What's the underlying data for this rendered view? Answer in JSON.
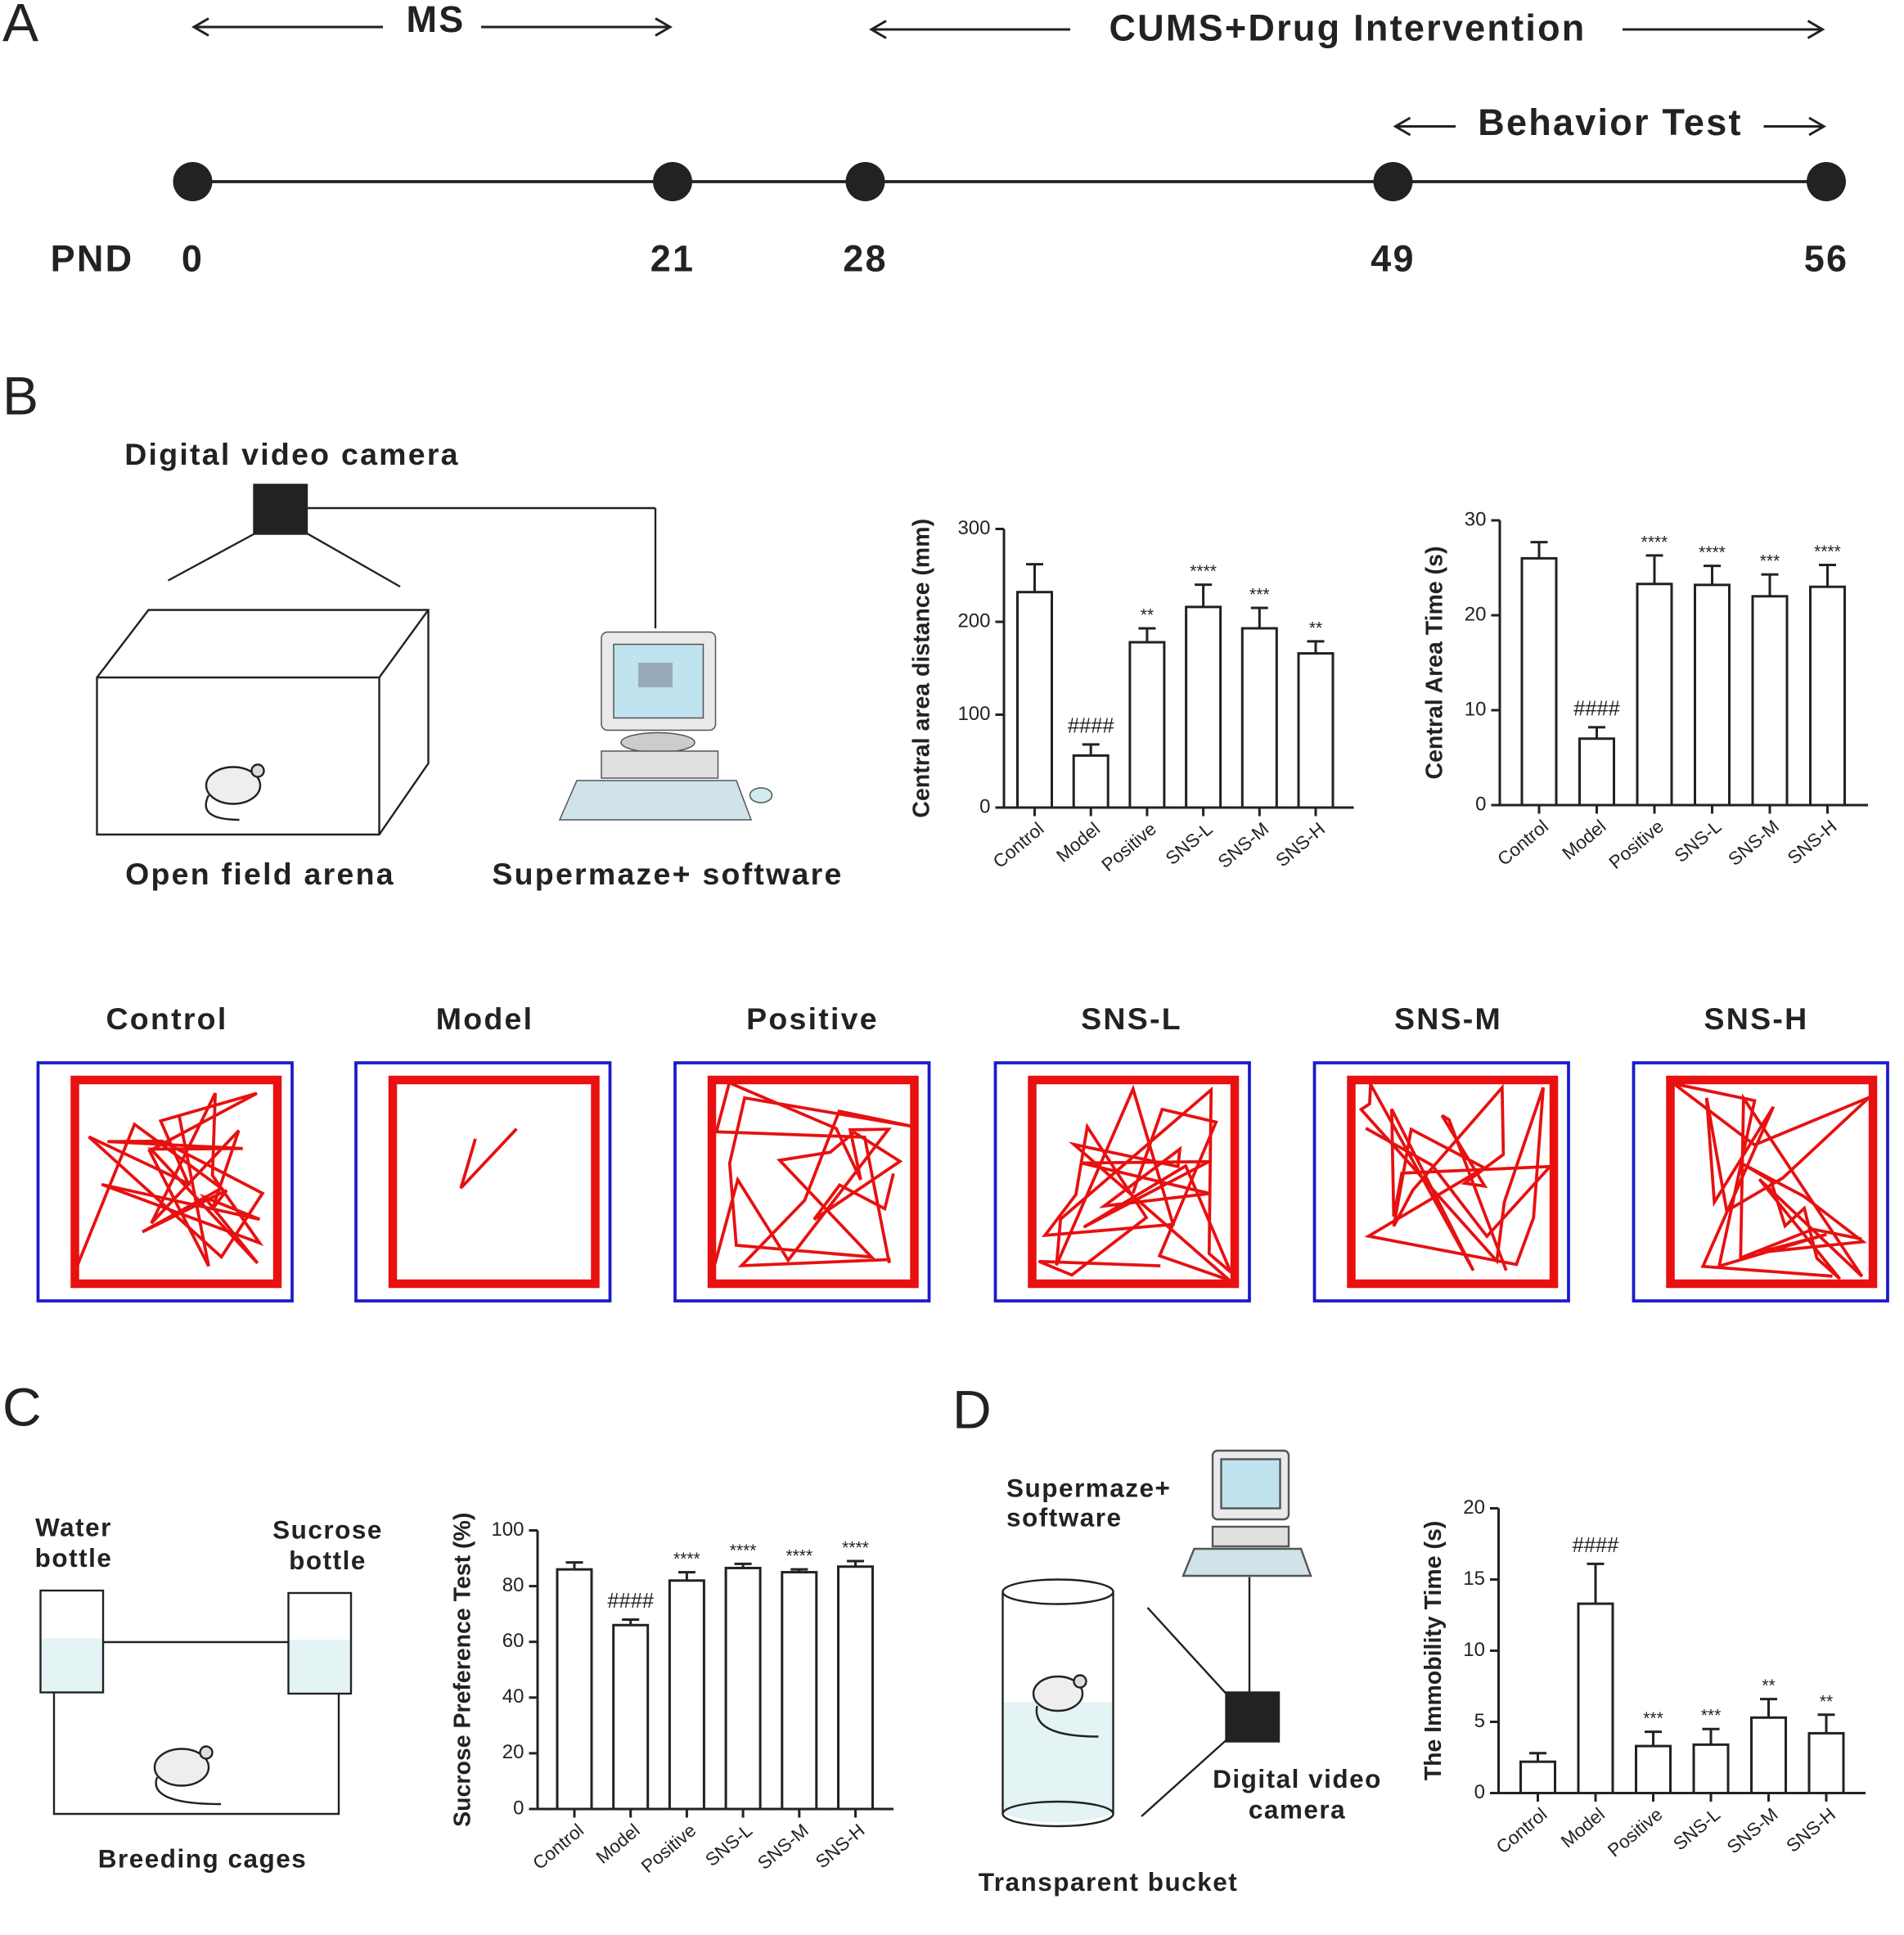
{
  "panel_a": {
    "letter": "A",
    "ms": "MS",
    "cums": "CUMS+Drug Intervention",
    "behavior": "Behavior Test",
    "pnd": "PND",
    "points": [
      "0",
      "21",
      "28",
      "49",
      "56"
    ]
  },
  "panel_b": {
    "letter": "B",
    "camera": "Digital video camera",
    "arena": "Open field arena",
    "software": "Supermaze+ software",
    "tracks": [
      "Control",
      "Model",
      "Positive",
      "SNS-L",
      "SNS-M",
      "SNS-H"
    ]
  },
  "panel_c": {
    "letter": "C",
    "water_bottle": [
      "Water",
      "bottle"
    ],
    "sucrose_bottle": [
      "Sucrose",
      "bottle"
    ],
    "cages": "Breeding cages"
  },
  "panel_d": {
    "letter": "D",
    "software": [
      "Supermaze+",
      "software"
    ],
    "camera": [
      "Digital video",
      "camera"
    ],
    "bucket": "Transparent bucket"
  },
  "chart_data": [
    {
      "type": "bar",
      "ylabel": "Central area distance (mm)",
      "categories": [
        "Control",
        "Model",
        "Positive",
        "SNS-L",
        "SNS-M",
        "SNS-H"
      ],
      "values": [
        232,
        56,
        178,
        216,
        193,
        166
      ],
      "errors": [
        30,
        12,
        15,
        24,
        22,
        13
      ],
      "annotations": [
        null,
        "####",
        "**",
        "****",
        "***",
        "**"
      ],
      "ylim": [
        0,
        300
      ],
      "yticks": [
        0,
        100,
        200,
        300
      ]
    },
    {
      "type": "bar",
      "ylabel": "Central Area Time (s)",
      "categories": [
        "Control",
        "Model",
        "Positive",
        "SNS-L",
        "SNS-M",
        "SNS-H"
      ],
      "values": [
        26,
        7,
        23.3,
        23.2,
        22,
        23
      ],
      "errors": [
        1.7,
        1.2,
        3,
        2,
        2.3,
        2.3
      ],
      "annotations": [
        null,
        "####",
        "****",
        "****",
        "***",
        "****"
      ],
      "ylim": [
        0,
        30
      ],
      "yticks": [
        0,
        10,
        20,
        30
      ]
    },
    {
      "type": "bar",
      "ylabel": "Sucrose Preference Test (%)",
      "categories": [
        "Control",
        "Model",
        "Positive",
        "SNS-L",
        "SNS-M",
        "SNS-H"
      ],
      "values": [
        86,
        66,
        82,
        86.5,
        85,
        87
      ],
      "errors": [
        2.5,
        2,
        3,
        1.5,
        1,
        2
      ],
      "annotations": [
        null,
        "####",
        "****",
        "****",
        "****",
        "****"
      ],
      "ylim": [
        0,
        100
      ],
      "yticks": [
        0,
        20,
        40,
        60,
        80,
        100
      ]
    },
    {
      "type": "bar",
      "ylabel": "The Immobility Time (s)",
      "categories": [
        "Control",
        "Model",
        "Positive",
        "SNS-L",
        "SNS-M",
        "SNS-H"
      ],
      "values": [
        2.2,
        13.3,
        3.3,
        3.4,
        5.3,
        4.2
      ],
      "errors": [
        0.6,
        2.8,
        1,
        1.1,
        1.3,
        1.3
      ],
      "annotations": [
        null,
        "####",
        "***",
        "***",
        "**",
        "**"
      ],
      "ylim": [
        0,
        20
      ],
      "yticks": [
        0,
        5,
        10,
        15,
        20
      ]
    }
  ]
}
